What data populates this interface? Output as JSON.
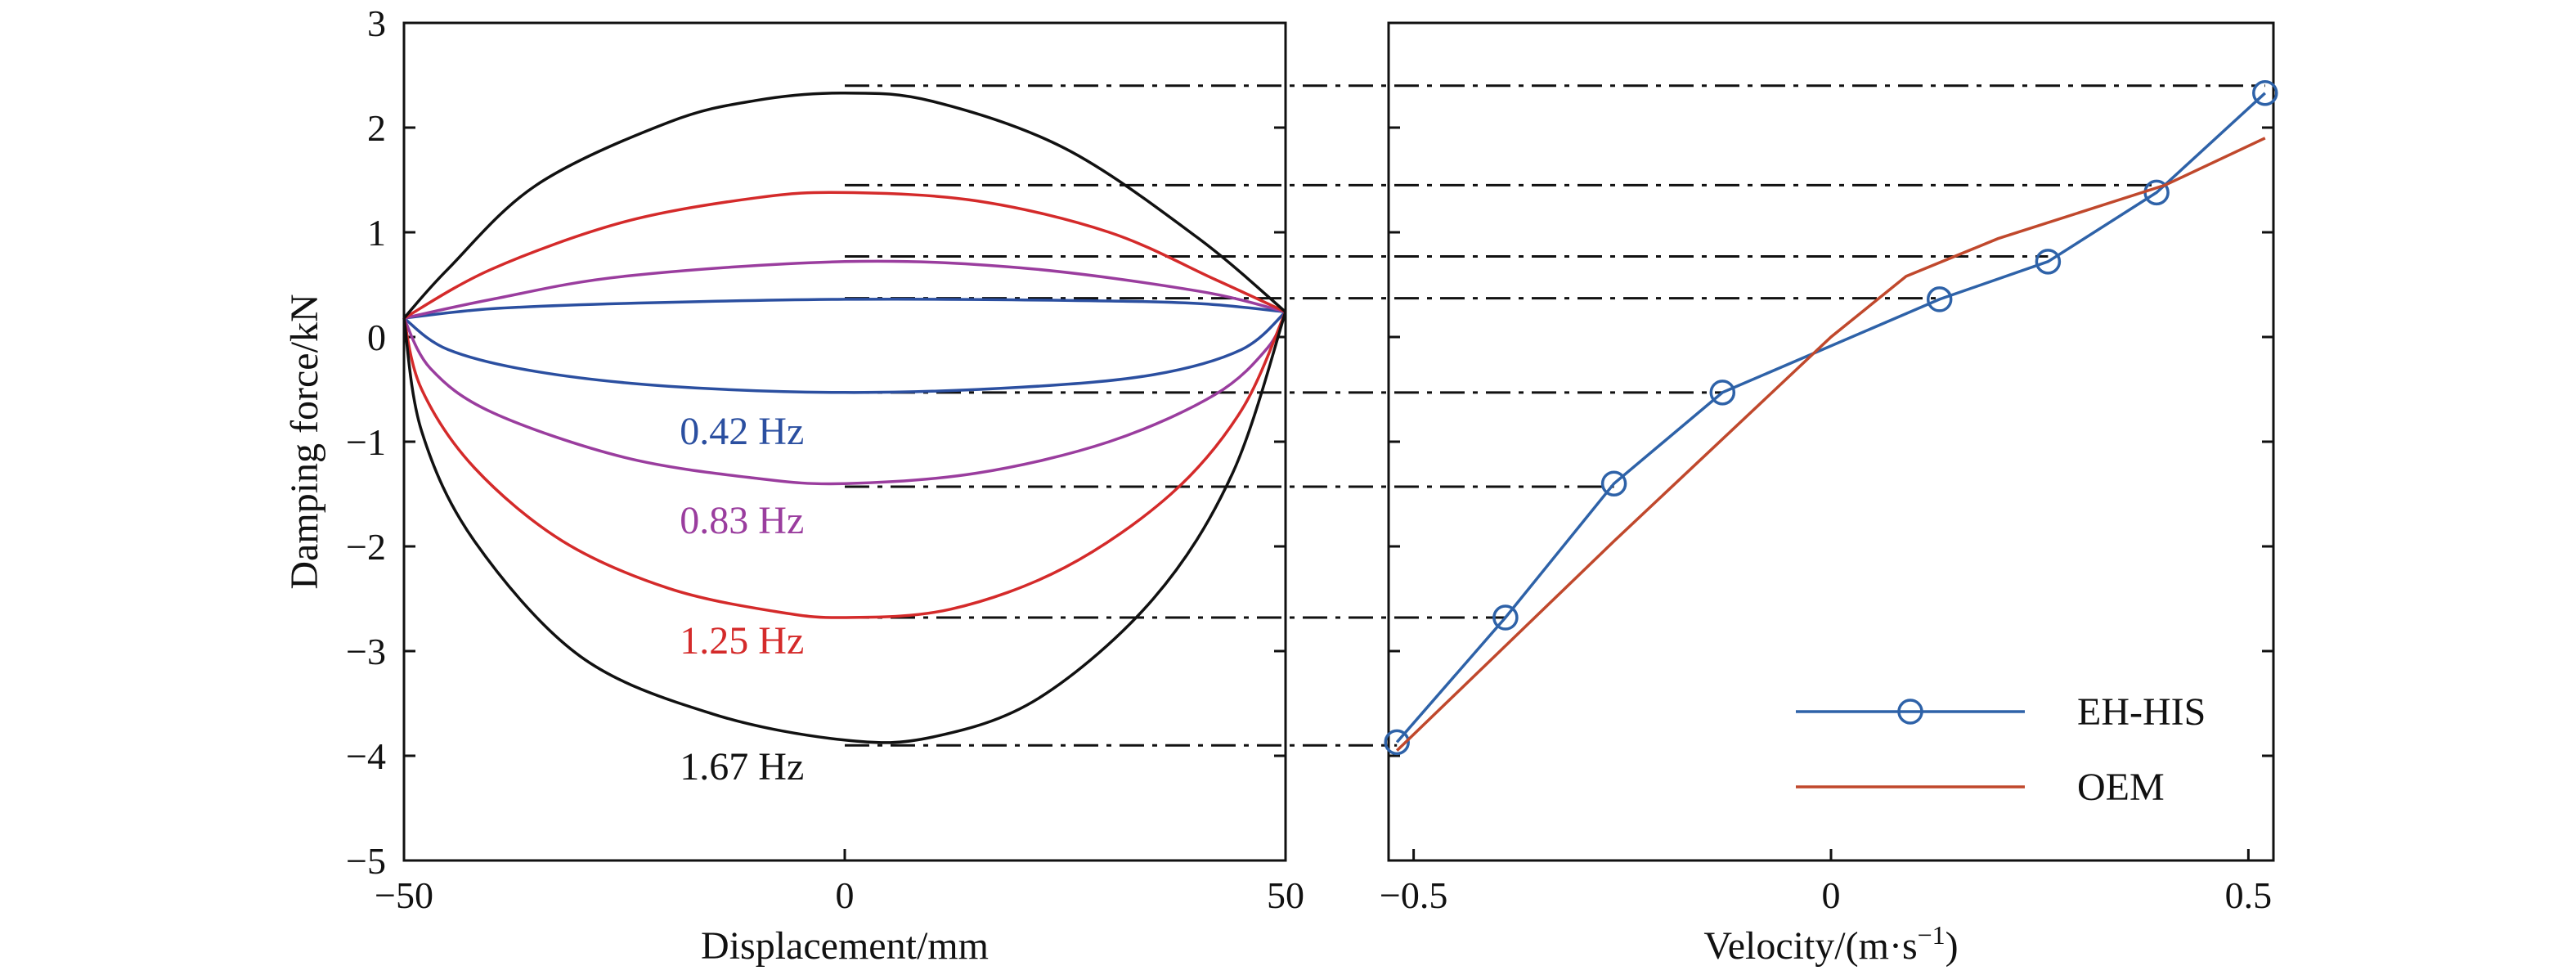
{
  "chart_data": [
    {
      "type": "line",
      "panel": "left",
      "title": "",
      "xlabel": "Displacement/mm",
      "ylabel": "Damping force/kN",
      "xlim": [
        -50,
        50
      ],
      "ylim": [
        -5,
        3
      ],
      "xticks": [
        "−50",
        "0",
        "50"
      ],
      "yticks": [
        "3",
        "2",
        "1",
        "0",
        "−1",
        "−2",
        "−3",
        "−4",
        "−5"
      ],
      "series": [
        {
          "name": "0.42 Hz",
          "label": "0.42 Hz",
          "color": "#2b4fa0",
          "upper": [
            [
              -50,
              0.18
            ],
            [
              -40,
              0.27
            ],
            [
              -25,
              0.32
            ],
            [
              0,
              0.36
            ],
            [
              25,
              0.35
            ],
            [
              40,
              0.32
            ],
            [
              50,
              0.24
            ]
          ],
          "lower": [
            [
              -50,
              0.18
            ],
            [
              -45,
              -0.12
            ],
            [
              -35,
              -0.33
            ],
            [
              -20,
              -0.47
            ],
            [
              0,
              -0.53
            ],
            [
              20,
              -0.48
            ],
            [
              35,
              -0.36
            ],
            [
              45,
              -0.12
            ],
            [
              50,
              0.24
            ]
          ],
          "label_at": [
            -15,
            -0.9
          ]
        },
        {
          "name": "0.83 Hz",
          "label": "0.83 Hz",
          "color": "#9a3d9e",
          "upper": [
            [
              -50,
              0.18
            ],
            [
              -40,
              0.36
            ],
            [
              -25,
              0.58
            ],
            [
              0,
              0.72
            ],
            [
              20,
              0.66
            ],
            [
              40,
              0.44
            ],
            [
              50,
              0.24
            ]
          ],
          "lower": [
            [
              -50,
              0.18
            ],
            [
              -47,
              -0.3
            ],
            [
              -40,
              -0.72
            ],
            [
              -25,
              -1.15
            ],
            [
              -10,
              -1.35
            ],
            [
              0,
              -1.4
            ],
            [
              15,
              -1.3
            ],
            [
              30,
              -1.0
            ],
            [
              42,
              -0.55
            ],
            [
              48,
              -0.1
            ],
            [
              50,
              0.24
            ]
          ],
          "label_at": [
            -15,
            -1.75
          ]
        },
        {
          "name": "1.25 Hz",
          "label": "1.25 Hz",
          "color": "#d42a2a",
          "upper": [
            [
              -50,
              0.18
            ],
            [
              -40,
              0.65
            ],
            [
              -25,
              1.1
            ],
            [
              -10,
              1.33
            ],
            [
              0,
              1.38
            ],
            [
              15,
              1.3
            ],
            [
              30,
              1.0
            ],
            [
              42,
              0.55
            ],
            [
              50,
              0.24
            ]
          ],
          "lower": [
            [
              -50,
              0.18
            ],
            [
              -48,
              -0.5
            ],
            [
              -42,
              -1.25
            ],
            [
              -32,
              -1.95
            ],
            [
              -20,
              -2.4
            ],
            [
              -8,
              -2.62
            ],
            [
              0,
              -2.68
            ],
            [
              12,
              -2.6
            ],
            [
              25,
              -2.2
            ],
            [
              37,
              -1.5
            ],
            [
              45,
              -0.7
            ],
            [
              50,
              0.24
            ]
          ],
          "label_at": [
            -15,
            -2.9
          ]
        },
        {
          "name": "1.67 Hz",
          "label": "1.67 Hz",
          "color": "#111111",
          "upper": [
            [
              -50,
              0.18
            ],
            [
              -45,
              0.65
            ],
            [
              -35,
              1.45
            ],
            [
              -20,
              2.05
            ],
            [
              -10,
              2.26
            ],
            [
              0,
              2.33
            ],
            [
              10,
              2.25
            ],
            [
              25,
              1.8
            ],
            [
              40,
              0.95
            ],
            [
              50,
              0.24
            ]
          ],
          "lower": [
            [
              -50,
              0.18
            ],
            [
              -48,
              -0.9
            ],
            [
              -42,
              -1.95
            ],
            [
              -30,
              -3.05
            ],
            [
              -15,
              -3.6
            ],
            [
              0,
              -3.85
            ],
            [
              10,
              -3.82
            ],
            [
              22,
              -3.45
            ],
            [
              35,
              -2.5
            ],
            [
              44,
              -1.3
            ],
            [
              50,
              0.24
            ]
          ],
          "label_at": [
            -15,
            -4.1
          ]
        }
      ]
    },
    {
      "type": "line",
      "panel": "right",
      "title": "",
      "xlabel": "Velocity/(m·s",
      "xlabel_sup": "−1",
      "xlabel_end": ")",
      "ylabel": "",
      "xlim": [
        -0.53,
        0.53
      ],
      "ylim": [
        -5,
        3
      ],
      "xticks": [
        "−0.5",
        "0",
        "0.5"
      ],
      "series": [
        {
          "name": "EH-HIS",
          "color": "#2e62a8",
          "marker": "circle",
          "x": [
            -0.52,
            -0.39,
            -0.26,
            -0.13,
            0.13,
            0.26,
            0.39,
            0.52
          ],
          "y": [
            -3.87,
            -2.68,
            -1.4,
            -0.53,
            0.36,
            0.72,
            1.38,
            2.33
          ]
        },
        {
          "name": "OEM",
          "color": "#c0482c",
          "marker": "none",
          "x": [
            -0.52,
            -0.26,
            0.0,
            0.09,
            0.2,
            0.4,
            0.52
          ],
          "y": [
            -3.95,
            -1.95,
            0.0,
            0.58,
            0.94,
            1.45,
            1.9
          ]
        }
      ],
      "legend": {
        "position": "bottom-right",
        "entries": [
          "EH-HIS",
          "OEM"
        ]
      }
    }
  ],
  "reference_lines": [
    {
      "y": 2.4,
      "x_end": 0.52
    },
    {
      "y": 1.45,
      "x_end": 0.39
    },
    {
      "y": 0.77,
      "x_end": 0.26
    },
    {
      "y": 0.37,
      "x_end": 0.13
    },
    {
      "y": -0.53,
      "x_end": -0.13
    },
    {
      "y": -1.43,
      "x_end": -0.26
    },
    {
      "y": -2.68,
      "x_end": -0.39
    },
    {
      "y": -3.9,
      "x_end": -0.52
    }
  ]
}
